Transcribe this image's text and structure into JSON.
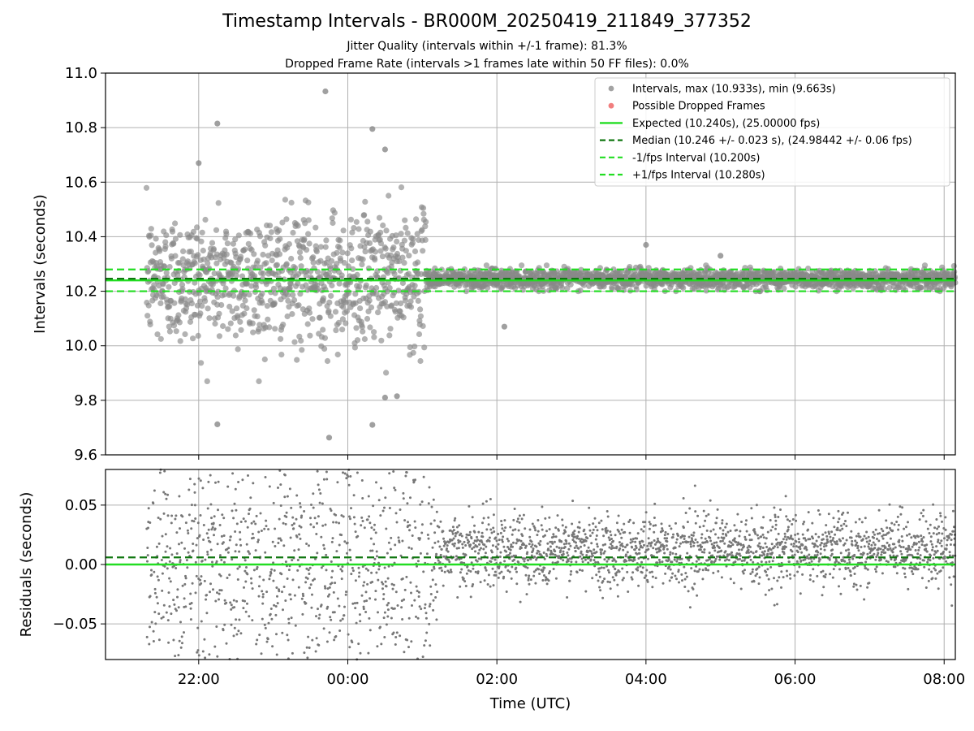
{
  "chart_data": [
    {
      "type": "scatter",
      "title": "Timestamp Intervals - BR000M_20250419_211849_377352",
      "subtitle_lines": [
        "Jitter Quality (intervals within +/-1 frame): 81.3%",
        "Dropped Frame Rate (intervals >1 frames late within 50 FF files): 0.0%"
      ],
      "ylabel": "Intervals (seconds)",
      "ylim": [
        9.6,
        11.0
      ],
      "yticks": [
        9.6,
        9.8,
        10.0,
        10.2,
        10.4,
        10.6,
        10.8,
        11.0
      ],
      "ytick_labels": [
        "9.6",
        "9.8",
        "10.0",
        "10.2",
        "10.4",
        "10.6",
        "10.8",
        "11.0"
      ],
      "xlim_hours": [
        20.75,
        32.15
      ],
      "xticks_hours": [
        22,
        24,
        26,
        28,
        30,
        32
      ],
      "grid": true,
      "legend_position": "top-right",
      "legend": [
        {
          "label": "Intervals, max (10.933s), min (9.663s)",
          "marker": "dot",
          "color": "#999999"
        },
        {
          "label": "Possible Dropped Frames",
          "marker": "dot",
          "color": "#f07070"
        },
        {
          "label": "Expected (10.240s), (25.00000 fps)",
          "marker": "line",
          "color": "#22dd22"
        },
        {
          "label": "Median (10.246 +/- 0.023 s), (24.98442 +/- 0.06 fps)",
          "marker": "dashed",
          "color": "#117711"
        },
        {
          "label": "-1/fps Interval (10.200s)",
          "marker": "dashed",
          "color": "#22dd22"
        },
        {
          "label": "+1/fps Interval (10.280s)",
          "marker": "dashed",
          "color": "#22dd22"
        }
      ],
      "reference_lines": {
        "expected": 10.24,
        "median": 10.246,
        "lower_fps": 10.2,
        "upper_fps": 10.28
      },
      "series_summary": {
        "max": 10.933,
        "min": 9.663,
        "time_start_hours": 21.3,
        "time_end_hours": 32.15,
        "high_jitter_until_hours": 25.05,
        "high_jitter_sd": 0.12,
        "low_jitter_sd": 0.018
      },
      "outliers": [
        [
          22.25,
          10.815
        ],
        [
          23.7,
          10.933
        ],
        [
          22.0,
          10.67
        ],
        [
          24.33,
          10.795
        ],
        [
          24.5,
          10.72
        ],
        [
          22.25,
          9.712
        ],
        [
          24.33,
          9.71
        ],
        [
          23.75,
          9.663
        ],
        [
          24.5,
          9.81
        ],
        [
          24.66,
          9.815
        ],
        [
          26.1,
          10.07
        ],
        [
          29.0,
          10.33
        ],
        [
          28.0,
          10.37
        ],
        [
          26.75,
          10.23
        ],
        [
          28.5,
          10.25
        ],
        [
          29.5,
          10.27
        ],
        [
          26.0,
          10.23
        ],
        [
          28.75,
          10.22
        ],
        [
          30.0,
          10.25
        ],
        [
          31.5,
          10.24
        ],
        [
          32.0,
          10.26
        ],
        [
          27.0,
          10.25
        ],
        [
          26.5,
          10.22
        ]
      ]
    },
    {
      "type": "scatter",
      "xlabel": "Time (UTC)",
      "ylabel": "Residuals (seconds)",
      "ylim": [
        -0.08,
        0.08
      ],
      "yticks": [
        -0.05,
        0.0,
        0.05
      ],
      "ytick_labels": [
        "−0.05",
        "0.00",
        "0.05"
      ],
      "xticks_hours": [
        22,
        24,
        26,
        28,
        30,
        32
      ],
      "xtick_labels": [
        "22:00",
        "00:00",
        "02:00",
        "04:00",
        "06:00",
        "08:00"
      ],
      "grid": true,
      "reference_lines": {
        "zero": 0.0,
        "median_offset": 0.006
      },
      "series_summary": {
        "high_jitter_until_hours": 25.2,
        "high_jitter_sd": 0.06,
        "low_jitter_sd": 0.015,
        "low_jitter_mean": 0.012
      }
    }
  ],
  "colors": {
    "points": "#888888",
    "residual_points": "#777777",
    "expected_line": "#22dd22",
    "median_line": "#117711",
    "fps_band": "#22dd22",
    "grid": "#b0b0b0",
    "dropped": "#f07070"
  }
}
